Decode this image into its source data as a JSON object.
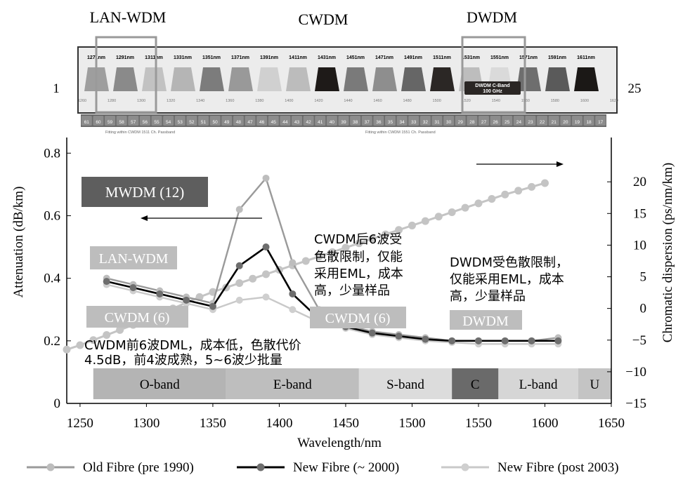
{
  "top_labels": {
    "lan_wdm": "LAN-WDM",
    "cwdm": "CWDM",
    "dwdm": "DWDM"
  },
  "channel_strip": {
    "left_number": "1",
    "right_number": "25",
    "wavelength_labels": [
      "1271nm",
      "1291nm",
      "1311nm",
      "1331nm",
      "1351nm",
      "1371nm",
      "1391nm",
      "1411nm",
      "1431nm",
      "1451nm",
      "1471nm",
      "1491nm",
      "1511nm",
      "1531nm",
      "1551nm",
      "1571nm",
      "1591nm",
      "1611nm"
    ],
    "dwdm_box": [
      "DWDM C-Band",
      "100 GHz"
    ],
    "tick_labels": [
      "1260",
      "1280",
      "1300",
      "1320",
      "1340",
      "1360",
      "1380",
      "1400",
      "1420",
      "1440",
      "1460",
      "1480",
      "1500",
      "1520",
      "1540",
      "1560",
      "1580",
      "1600",
      "1620"
    ],
    "channel_numbers": [
      "61",
      "60",
      "59",
      "58",
      "57",
      "56",
      "55",
      "54",
      "53",
      "52",
      "51",
      "50",
      "49",
      "48",
      "47",
      "46",
      "45",
      "44",
      "43",
      "42",
      "41",
      "40",
      "39",
      "38",
      "37",
      "36",
      "35",
      "34",
      "33",
      "32",
      "31",
      "30",
      "29",
      "28",
      "27",
      "26",
      "25",
      "24",
      "23",
      "22",
      "21",
      "20",
      "19",
      "18",
      "17"
    ],
    "note_left": "Fitting within CWDM 1511 Ch. Passband",
    "note_right": "Fitting within CWDM 1551 Ch. Passband"
  },
  "chart_data": {
    "type": "line",
    "xlabel": "Wavelength/nm",
    "ylabel": "Attenuation (dB/km)",
    "y2label": "Chromatic dispersion (ps/nm/km)",
    "xlim": [
      1240,
      1650
    ],
    "ylim": [
      0,
      0.85
    ],
    "y2lim": [
      -15,
      27
    ],
    "xticks": [
      1250,
      1300,
      1350,
      1400,
      1450,
      1500,
      1550,
      1600,
      1650
    ],
    "yticks": [
      0,
      0.2,
      0.4,
      0.6,
      0.8
    ],
    "y2ticks": [
      -15,
      -10,
      -5,
      0,
      5,
      10,
      15,
      20
    ],
    "series": [
      {
        "name": "Old Fibre (pre 1990)",
        "color": "#9a9a9a",
        "marker": "#bdbdbd",
        "x": [
          1270,
          1290,
          1310,
          1330,
          1350,
          1370,
          1390,
          1410,
          1430,
          1450,
          1470,
          1490,
          1510,
          1530,
          1550,
          1570,
          1590,
          1610
        ],
        "y": [
          0.4,
          0.38,
          0.36,
          0.34,
          0.32,
          0.62,
          0.72,
          0.45,
          0.3,
          0.25,
          0.23,
          0.22,
          0.21,
          0.2,
          0.2,
          0.2,
          0.2,
          0.21
        ]
      },
      {
        "name": "New Fibre (~ 2000)",
        "color": "#000000",
        "marker": "#6e6e6e",
        "x": [
          1270,
          1290,
          1310,
          1330,
          1350,
          1370,
          1390,
          1410,
          1430,
          1450,
          1470,
          1490,
          1510,
          1530,
          1550,
          1570,
          1590,
          1610
        ],
        "y": [
          0.39,
          0.37,
          0.35,
          0.33,
          0.31,
          0.44,
          0.5,
          0.35,
          0.27,
          0.245,
          0.225,
          0.215,
          0.205,
          0.2,
          0.2,
          0.2,
          0.2,
          0.2
        ]
      },
      {
        "name": "New Fibre (post 2003)",
        "color": "#c9c9c9",
        "marker": "#cfcfcf",
        "x": [
          1270,
          1290,
          1310,
          1330,
          1350,
          1370,
          1390,
          1410,
          1430,
          1450,
          1470,
          1490,
          1510,
          1530,
          1550,
          1570,
          1590,
          1610
        ],
        "y": [
          0.38,
          0.36,
          0.34,
          0.32,
          0.3,
          0.33,
          0.34,
          0.3,
          0.26,
          0.24,
          0.22,
          0.21,
          0.2,
          0.195,
          0.19,
          0.19,
          0.19,
          0.19
        ]
      }
    ],
    "dispersion": {
      "name": "Chromatic dispersion",
      "color": "#c4c4c4",
      "x": [
        1240,
        1250,
        1260,
        1270,
        1280,
        1290,
        1300,
        1310,
        1320,
        1330,
        1340,
        1350,
        1360,
        1370,
        1380,
        1390,
        1400,
        1410,
        1420,
        1430,
        1440,
        1450,
        1460,
        1470,
        1480,
        1490,
        1500,
        1510,
        1520,
        1530,
        1540,
        1550,
        1560,
        1570,
        1580,
        1590,
        1600
      ],
      "y": [
        -6.5,
        -5.8,
        -5.0,
        -4.2,
        -3.4,
        -2.6,
        -1.8,
        -0.9,
        0.0,
        0.9,
        1.8,
        2.6,
        3.3,
        4.0,
        4.7,
        5.4,
        6.1,
        6.8,
        7.5,
        8.2,
        8.9,
        9.6,
        10.3,
        11.0,
        11.7,
        12.4,
        13.1,
        13.8,
        14.5,
        15.2,
        15.9,
        16.6,
        17.3,
        18.0,
        18.6,
        19.2,
        19.8
      ]
    },
    "bands": [
      {
        "label": "O-band",
        "from": 1260,
        "to": 1360,
        "color": "#b4b4b4",
        "text": "#000000"
      },
      {
        "label": "E-band",
        "from": 1360,
        "to": 1460,
        "color": "#bebebe",
        "text": "#000000"
      },
      {
        "label": "S-band",
        "from": 1460,
        "to": 1530,
        "color": "#dcdcdc",
        "text": "#000000"
      },
      {
        "label": "C",
        "from": 1530,
        "to": 1565,
        "color": "#6a6a6a",
        "text": "#000000"
      },
      {
        "label": "L-band",
        "from": 1565,
        "to": 1625,
        "color": "#d6d6d6",
        "text": "#000000"
      },
      {
        "label": "U",
        "from": 1625,
        "to": 1650,
        "color": "#c4c4c4",
        "text": "#000000"
      }
    ],
    "annotations": {
      "mwdm": "MWDM (12)",
      "lan_wdm": "LAN-WDM",
      "cwdm_left": "CWDM (6)",
      "cwdm_right": "CWDM (6)",
      "dwdm": "DWDM",
      "note_cwdm_first": [
        "CWDM前6波DML，成本低，色散代价",
        "4.5dB，前4波成熟，5~6波少批量"
      ],
      "note_cwdm_last": [
        "CWDM后6波受",
        "色散限制，仅能",
        "采用EML，成本",
        "高，少量样品"
      ],
      "note_dwdm": [
        "DWDM受色散限制，",
        "仅能采用EML，成本",
        "高，少量样品"
      ]
    },
    "grid": false,
    "legend_position": "bottom"
  },
  "colors": {
    "axis": "#000000",
    "mwdm_box": "#5e5e5e",
    "label_box": "#bdbdbd",
    "dark_filter": "#1e1a18"
  }
}
